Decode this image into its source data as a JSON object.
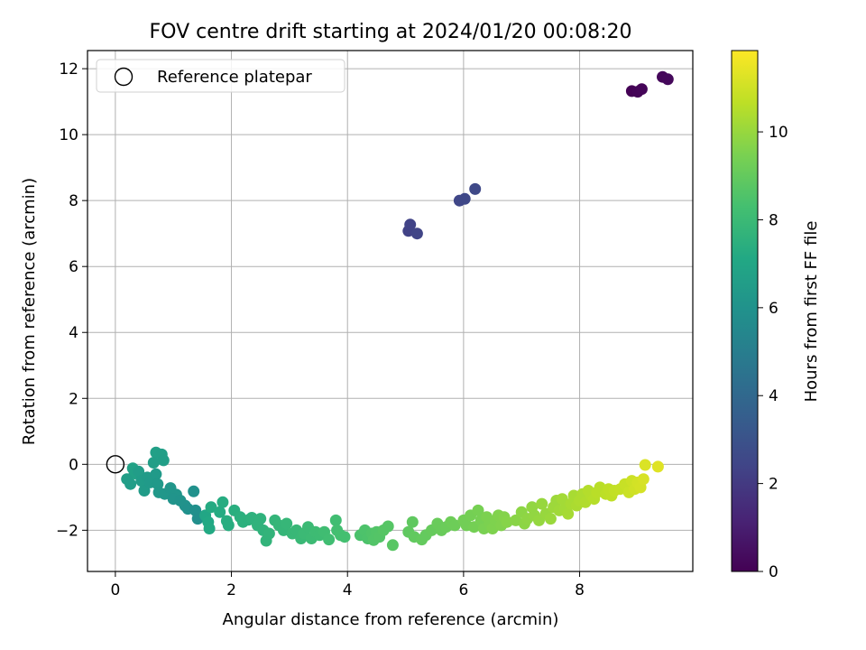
{
  "chart_data": {
    "type": "scatter",
    "title": "FOV centre drift starting at 2024/01/20 00:08:20",
    "xlabel": "Angular distance from reference (arcmin)",
    "ylabel": "Rotation from reference (arcmin)",
    "colorbar_label": "Hours from first FF file",
    "colormap": "viridis",
    "xlim": [
      -0.48,
      9.95
    ],
    "ylim": [
      -3.25,
      12.55
    ],
    "clim": [
      0,
      11.85
    ],
    "xticks": [
      "0",
      "2",
      "4",
      "6",
      "8"
    ],
    "yticks": [
      "−2",
      "0",
      "2",
      "4",
      "6",
      "8",
      "10",
      "12"
    ],
    "cticks": [
      "0",
      "2",
      "4",
      "6",
      "8",
      "10"
    ],
    "grid": true,
    "legend": {
      "position": "top-left",
      "label": "Reference platepar",
      "marker": "open-circle"
    },
    "reference_point": {
      "x": 0,
      "y": 0
    },
    "points": [
      [
        8.9,
        11.32,
        0.05
      ],
      [
        9.0,
        11.3,
        0.1
      ],
      [
        9.07,
        11.38,
        0.15
      ],
      [
        9.43,
        11.75,
        0.2
      ],
      [
        9.52,
        11.68,
        0.25
      ],
      [
        5.05,
        7.08,
        2.3
      ],
      [
        5.08,
        7.27,
        2.35
      ],
      [
        5.2,
        7.0,
        2.4
      ],
      [
        5.93,
        8.0,
        2.5
      ],
      [
        6.02,
        8.05,
        2.55
      ],
      [
        6.2,
        8.35,
        2.6
      ],
      [
        0.3,
        -0.12,
        6.8
      ],
      [
        0.33,
        -0.28,
        6.75
      ],
      [
        0.7,
        0.36,
        6.7
      ],
      [
        0.8,
        0.3,
        6.65
      ],
      [
        0.83,
        0.12,
        6.6
      ],
      [
        0.66,
        0.05,
        6.6
      ],
      [
        0.2,
        -0.45,
        6.6
      ],
      [
        0.26,
        -0.6,
        6.55
      ],
      [
        0.4,
        -0.22,
        6.55
      ],
      [
        0.45,
        -0.5,
        6.5
      ],
      [
        0.5,
        -0.8,
        6.45
      ],
      [
        0.55,
        -0.4,
        6.45
      ],
      [
        0.6,
        -0.55,
        6.4
      ],
      [
        0.7,
        -0.3,
        6.4
      ],
      [
        0.73,
        -0.6,
        6.35
      ],
      [
        0.75,
        -0.85,
        6.3
      ],
      [
        0.85,
        -0.9,
        6.25
      ],
      [
        0.95,
        -0.72,
        6.2
      ],
      [
        1.05,
        -0.92,
        6.15
      ],
      [
        1.0,
        -1.05,
        6.1
      ],
      [
        1.12,
        -1.1,
        6.05
      ],
      [
        1.2,
        -1.25,
        6.0
      ],
      [
        1.25,
        -1.35,
        5.95
      ],
      [
        1.35,
        -0.82,
        5.95
      ],
      [
        1.38,
        -1.4,
        5.9
      ],
      [
        1.42,
        -1.65,
        5.85
      ],
      [
        1.55,
        -1.55,
        7.0
      ],
      [
        1.6,
        -1.75,
        7.1
      ],
      [
        1.62,
        -1.95,
        7.15
      ],
      [
        1.65,
        -1.3,
        7.2
      ],
      [
        1.8,
        -1.45,
        7.25
      ],
      [
        1.85,
        -1.15,
        7.3
      ],
      [
        1.92,
        -1.72,
        7.35
      ],
      [
        1.95,
        -1.85,
        7.35
      ],
      [
        2.05,
        -1.4,
        7.4
      ],
      [
        2.15,
        -1.6,
        7.45
      ],
      [
        2.2,
        -1.75,
        7.5
      ],
      [
        2.3,
        -1.68,
        7.5
      ],
      [
        2.35,
        -1.62,
        7.55
      ],
      [
        2.45,
        -1.85,
        7.6
      ],
      [
        2.5,
        -1.65,
        7.6
      ],
      [
        2.55,
        -2.0,
        7.65
      ],
      [
        2.6,
        -2.32,
        7.7
      ],
      [
        2.65,
        -2.1,
        7.7
      ],
      [
        2.75,
        -1.7,
        7.75
      ],
      [
        2.82,
        -1.85,
        7.8
      ],
      [
        2.9,
        -2.0,
        7.8
      ],
      [
        2.95,
        -1.8,
        7.85
      ],
      [
        3.05,
        -2.1,
        7.9
      ],
      [
        3.12,
        -2.0,
        7.9
      ],
      [
        3.2,
        -2.25,
        7.95
      ],
      [
        3.25,
        -2.1,
        8.0
      ],
      [
        3.32,
        -1.9,
        8.0
      ],
      [
        3.38,
        -2.25,
        8.05
      ],
      [
        3.45,
        -2.05,
        8.1
      ],
      [
        3.52,
        -2.15,
        8.1
      ],
      [
        3.6,
        -2.05,
        8.15
      ],
      [
        3.68,
        -2.28,
        8.2
      ],
      [
        3.8,
        -1.7,
        8.2
      ],
      [
        3.82,
        -2.0,
        8.25
      ],
      [
        3.88,
        -2.15,
        8.3
      ],
      [
        3.95,
        -2.2,
        8.3
      ],
      [
        4.22,
        -2.15,
        8.45
      ],
      [
        4.3,
        -2.0,
        8.5
      ],
      [
        4.35,
        -2.25,
        8.5
      ],
      [
        4.42,
        -2.1,
        8.55
      ],
      [
        4.45,
        -2.3,
        8.6
      ],
      [
        4.5,
        -2.05,
        8.6
      ],
      [
        4.55,
        -2.2,
        8.65
      ],
      [
        4.62,
        -2.0,
        8.7
      ],
      [
        4.7,
        -1.88,
        8.7
      ],
      [
        4.78,
        -2.45,
        8.75
      ],
      [
        5.05,
        -2.05,
        8.9
      ],
      [
        5.12,
        -1.75,
        8.9
      ],
      [
        5.15,
        -2.2,
        8.95
      ],
      [
        5.28,
        -2.28,
        9.0
      ],
      [
        5.35,
        -2.15,
        9.0
      ],
      [
        5.45,
        -2.0,
        9.05
      ],
      [
        5.55,
        -1.8,
        9.1
      ],
      [
        5.62,
        -2.0,
        9.1
      ],
      [
        5.7,
        -1.9,
        9.15
      ],
      [
        5.78,
        -1.75,
        9.2
      ],
      [
        5.85,
        -1.85,
        9.2
      ],
      [
        6.0,
        -1.7,
        9.3
      ],
      [
        6.05,
        -1.85,
        9.3
      ],
      [
        6.12,
        -1.55,
        9.35
      ],
      [
        6.18,
        -1.9,
        9.35
      ],
      [
        6.25,
        -1.4,
        9.4
      ],
      [
        6.3,
        -1.7,
        9.4
      ],
      [
        6.35,
        -1.95,
        9.45
      ],
      [
        6.4,
        -1.6,
        9.5
      ],
      [
        6.45,
        -1.8,
        9.5
      ],
      [
        6.5,
        -1.95,
        9.55
      ],
      [
        6.55,
        -1.7,
        9.55
      ],
      [
        6.6,
        -1.55,
        9.6
      ],
      [
        6.65,
        -1.85,
        9.6
      ],
      [
        6.7,
        -1.6,
        9.65
      ],
      [
        6.75,
        -1.75,
        9.7
      ],
      [
        6.9,
        -1.7,
        9.75
      ],
      [
        7.0,
        -1.45,
        9.8
      ],
      [
        7.05,
        -1.8,
        9.8
      ],
      [
        7.1,
        -1.65,
        9.85
      ],
      [
        7.18,
        -1.3,
        9.9
      ],
      [
        7.22,
        -1.55,
        9.9
      ],
      [
        7.3,
        -1.7,
        9.95
      ],
      [
        7.35,
        -1.2,
        10.0
      ],
      [
        7.42,
        -1.5,
        10.0
      ],
      [
        7.5,
        -1.65,
        10.05
      ],
      [
        7.55,
        -1.3,
        10.1
      ],
      [
        7.6,
        -1.1,
        10.1
      ],
      [
        7.65,
        -1.4,
        10.15
      ],
      [
        7.7,
        -1.05,
        10.2
      ],
      [
        7.75,
        -1.35,
        10.2
      ],
      [
        7.8,
        -1.5,
        10.25
      ],
      [
        7.85,
        -1.2,
        10.3
      ],
      [
        7.9,
        -0.95,
        10.3
      ],
      [
        7.95,
        -1.25,
        10.35
      ],
      [
        8.0,
        -1.1,
        10.4
      ],
      [
        8.05,
        -0.9,
        10.4
      ],
      [
        8.1,
        -1.15,
        10.45
      ],
      [
        8.15,
        -0.8,
        10.5
      ],
      [
        8.2,
        -0.95,
        10.5
      ],
      [
        8.25,
        -1.05,
        10.55
      ],
      [
        8.3,
        -0.85,
        10.6
      ],
      [
        8.35,
        -0.7,
        10.6
      ],
      [
        8.45,
        -0.9,
        10.65
      ],
      [
        8.5,
        -0.75,
        10.7
      ],
      [
        8.55,
        -0.95,
        10.7
      ],
      [
        8.6,
        -0.8,
        10.75
      ],
      [
        8.7,
        -0.75,
        10.8
      ],
      [
        8.78,
        -0.6,
        10.85
      ],
      [
        8.85,
        -0.85,
        10.9
      ],
      [
        8.9,
        -0.5,
        10.95
      ],
      [
        8.95,
        -0.75,
        11.0
      ],
      [
        9.0,
        -0.55,
        11.05
      ],
      [
        9.05,
        -0.7,
        11.1
      ],
      [
        9.1,
        -0.45,
        11.15
      ],
      [
        9.13,
        -0.02,
        11.2
      ],
      [
        9.35,
        -0.07,
        11.3
      ]
    ]
  }
}
